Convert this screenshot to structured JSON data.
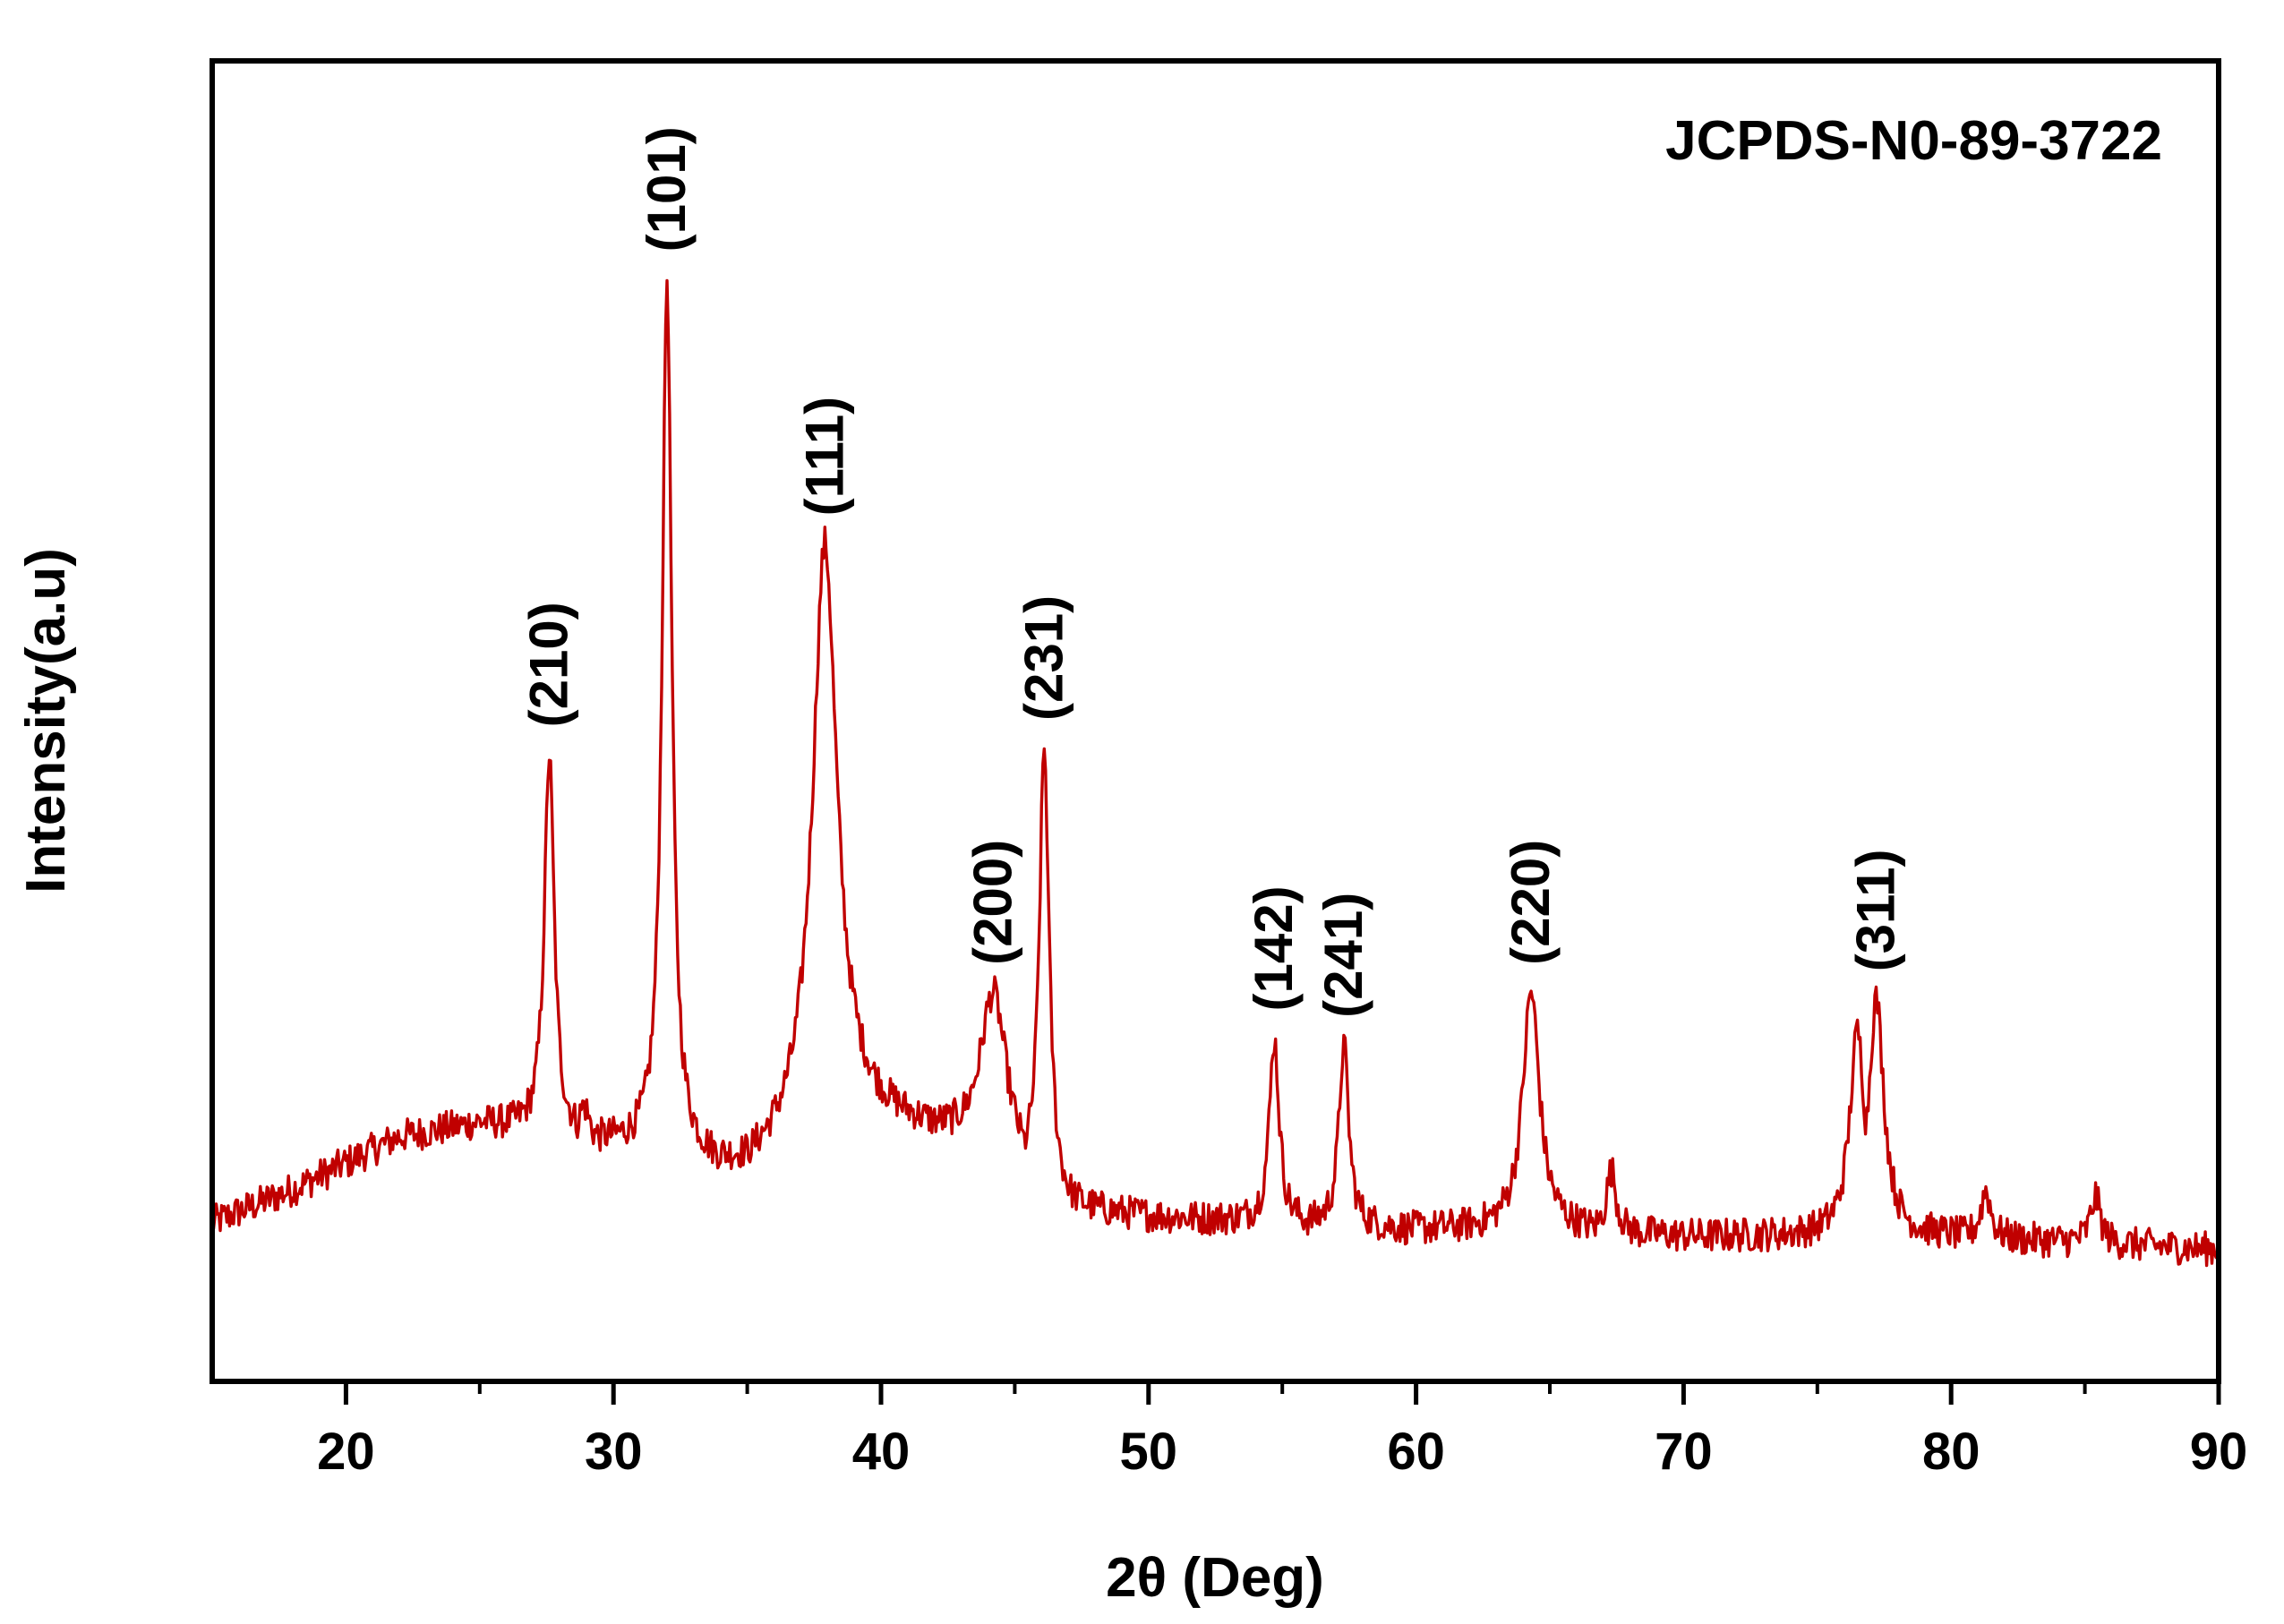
{
  "chart_data": {
    "type": "line",
    "title": "",
    "reference_label": "JCPDS-N0-89-3722",
    "xlabel": "2θ (Deg)",
    "ylabel": "Intensity(a.u)",
    "xlim": [
      15,
      90
    ],
    "ylim": [
      0,
      100
    ],
    "x_ticks": [
      20,
      30,
      40,
      50,
      60,
      70,
      80,
      90
    ],
    "x_minor_ticks": [
      25,
      35,
      45,
      55,
      65,
      75,
      85
    ],
    "y_ticks_shown": false,
    "line_color": "#c00000",
    "baseline": [
      [
        15,
        12
      ],
      [
        18,
        14.5
      ],
      [
        20,
        16.5
      ],
      [
        22,
        18.5
      ],
      [
        25,
        19.5
      ],
      [
        27,
        19
      ],
      [
        30,
        18
      ],
      [
        33,
        17
      ],
      [
        35,
        16
      ],
      [
        37,
        18
      ],
      [
        39,
        20
      ],
      [
        42,
        19
      ],
      [
        45,
        16
      ],
      [
        47,
        13
      ],
      [
        50,
        12.5
      ],
      [
        55,
        12
      ],
      [
        60,
        11.5
      ],
      [
        65,
        11.5
      ],
      [
        70,
        11
      ],
      [
        75,
        11
      ],
      [
        80,
        11
      ],
      [
        85,
        10.5
      ],
      [
        90,
        10
      ]
    ],
    "peaks": [
      {
        "label": "(210)",
        "position": 27.6,
        "intensity": 47.5
      },
      {
        "label": "(101)",
        "position": 32.0,
        "intensity": 83.5
      },
      {
        "label": "(111)",
        "position": 37.9,
        "intensity": 63.5
      },
      {
        "label": "(200)",
        "position": 44.2,
        "intensity": 29.5
      },
      {
        "label": "(231)",
        "position": 46.1,
        "intensity": 48.0
      },
      {
        "label": "(142)",
        "position": 54.7,
        "intensity": 26.0
      },
      {
        "label": "(241)",
        "position": 57.3,
        "intensity": 25.5
      },
      {
        "label": "(220)",
        "position": 64.3,
        "intensity": 29.5
      },
      {
        "label": "(311)",
        "position": 77.2,
        "intensity": 29.0
      }
    ],
    "minor_peaks": [
      {
        "position": 76.5,
        "intensity": 26.5
      },
      {
        "position": 67.3,
        "intensity": 16.0
      },
      {
        "position": 81.3,
        "intensity": 14.5
      },
      {
        "position": 85.4,
        "intensity": 14.0
      },
      {
        "position": 39.6,
        "intensity": 22.0
      },
      {
        "position": 28.9,
        "intensity": 21.0
      }
    ]
  }
}
